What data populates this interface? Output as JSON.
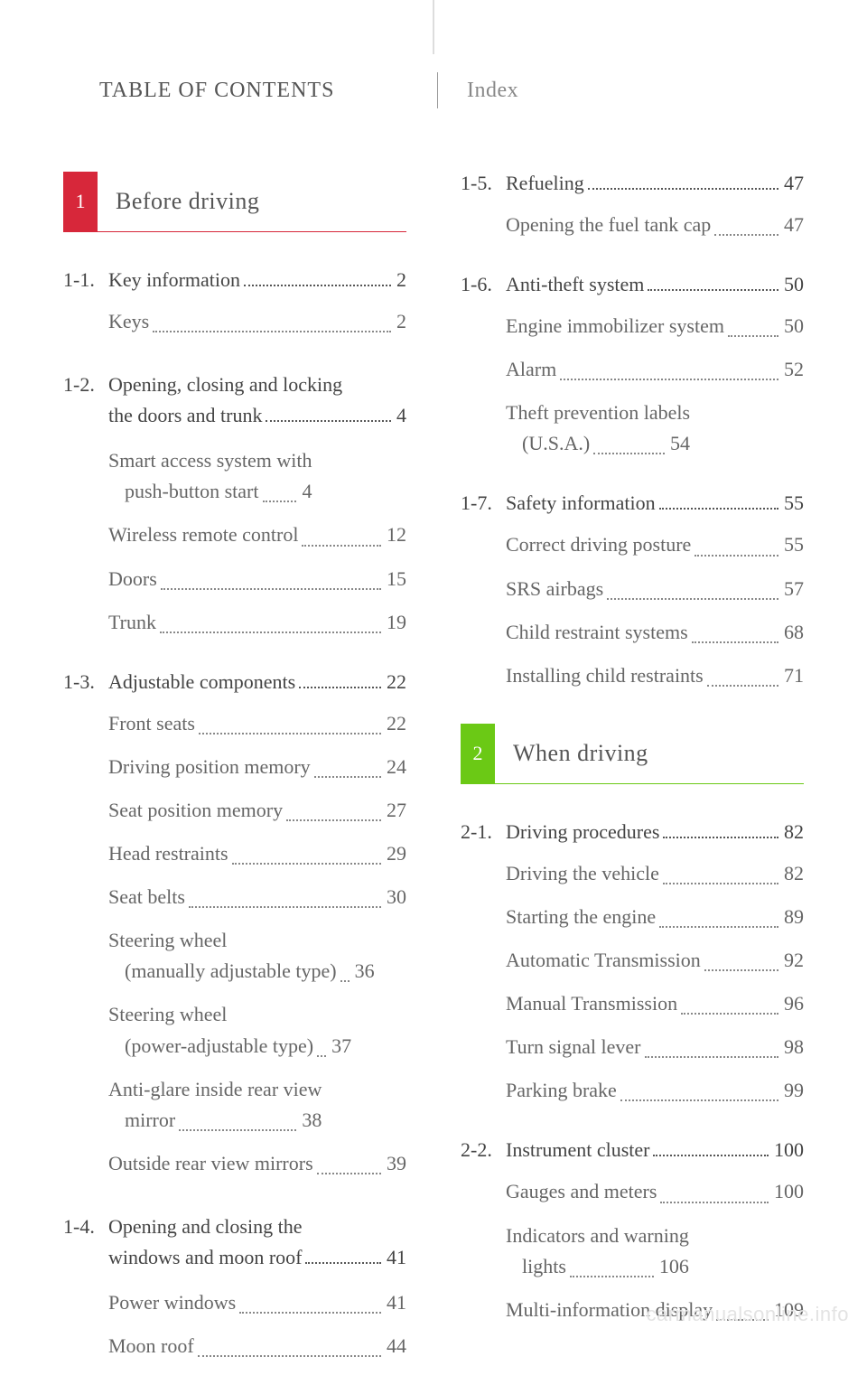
{
  "header": {
    "toc": "TABLE OF CONTENTS",
    "index": "Index"
  },
  "colors": {
    "chapter1_accent": "#d7273a",
    "chapter2_accent": "#6bc915",
    "text_primary": "#444444",
    "text_secondary": "#666666",
    "text_muted": "#888888",
    "background": "#ffffff"
  },
  "typography": {
    "base_font": "Georgia / serif",
    "body_size_pt": 16,
    "chapter_title_size_pt": 19
  },
  "watermark": "carmanualsonline.info",
  "chapters": [
    {
      "num": "1",
      "title": "Before driving",
      "accent": "#d7273a"
    },
    {
      "num": "2",
      "title": "When driving",
      "accent": "#6bc915"
    }
  ],
  "sections": {
    "s1_1": {
      "num": "1-1.",
      "title": "Key information",
      "page": "2",
      "entries": [
        {
          "label": "Keys",
          "page": "2"
        }
      ]
    },
    "s1_2": {
      "num": "1-2.",
      "title_l1": "Opening, closing and locking",
      "title_l2": "the doors and trunk",
      "page": "4",
      "entries": [
        {
          "l1": "Smart access system with",
          "l2": "push-button start",
          "page": "4"
        },
        {
          "label": "Wireless remote control",
          "page": "12"
        },
        {
          "label": "Doors",
          "page": "15"
        },
        {
          "label": "Trunk",
          "page": "19"
        }
      ]
    },
    "s1_3": {
      "num": "1-3.",
      "title": "Adjustable components",
      "page": "22",
      "entries": [
        {
          "label": "Front seats",
          "page": "22"
        },
        {
          "label": "Driving position memory",
          "page": "24"
        },
        {
          "label": "Seat position memory",
          "page": "27"
        },
        {
          "label": "Head restraints",
          "page": "29"
        },
        {
          "label": "Seat belts",
          "page": "30"
        },
        {
          "l1": "Steering wheel",
          "l2": "(manually adjustable type)",
          "page": "36"
        },
        {
          "l1": "Steering wheel",
          "l2": "(power-adjustable type)",
          "page": "37"
        },
        {
          "l1": "Anti-glare inside rear view",
          "l2": "mirror",
          "page": "38"
        },
        {
          "label": "Outside rear view mirrors",
          "page": "39"
        }
      ]
    },
    "s1_4": {
      "num": "1-4.",
      "title_l1": "Opening and closing the",
      "title_l2": "windows and moon roof",
      "page": "41",
      "entries": [
        {
          "label": "Power windows",
          "page": "41"
        },
        {
          "label": "Moon roof",
          "page": "44"
        }
      ]
    },
    "s1_5": {
      "num": "1-5.",
      "title": "Refueling",
      "page": "47",
      "entries": [
        {
          "label": "Opening the fuel tank cap",
          "page": "47"
        }
      ]
    },
    "s1_6": {
      "num": "1-6.",
      "title": "Anti-theft system",
      "page": "50",
      "entries": [
        {
          "label": "Engine immobilizer system",
          "page": "50"
        },
        {
          "label": "Alarm",
          "page": "52"
        },
        {
          "l1": "Theft prevention labels",
          "l2": "(U.S.A.)",
          "page": "54"
        }
      ]
    },
    "s1_7": {
      "num": "1-7.",
      "title": "Safety information",
      "page": "55",
      "entries": [
        {
          "label": "Correct driving posture",
          "page": "55"
        },
        {
          "label": "SRS airbags",
          "page": "57"
        },
        {
          "label": "Child restraint systems",
          "page": "68"
        },
        {
          "label": "Installing child restraints",
          "page": "71"
        }
      ]
    },
    "s2_1": {
      "num": "2-1.",
      "title": "Driving procedures",
      "page": "82",
      "entries": [
        {
          "label": "Driving the vehicle",
          "page": "82"
        },
        {
          "label": "Starting the engine",
          "page": "89"
        },
        {
          "label": "Automatic Transmission",
          "page": "92"
        },
        {
          "label": "Manual Transmission",
          "page": "96"
        },
        {
          "label": "Turn signal lever",
          "page": "98"
        },
        {
          "label": "Parking brake",
          "page": "99"
        }
      ]
    },
    "s2_2": {
      "num": "2-2.",
      "title": "Instrument cluster",
      "page": "100",
      "entries": [
        {
          "label": "Gauges and meters",
          "page": "100"
        },
        {
          "l1": "Indicators and warning",
          "l2": "lights",
          "page": "106"
        },
        {
          "label": "Multi-information display",
          "page": "109"
        }
      ]
    }
  }
}
